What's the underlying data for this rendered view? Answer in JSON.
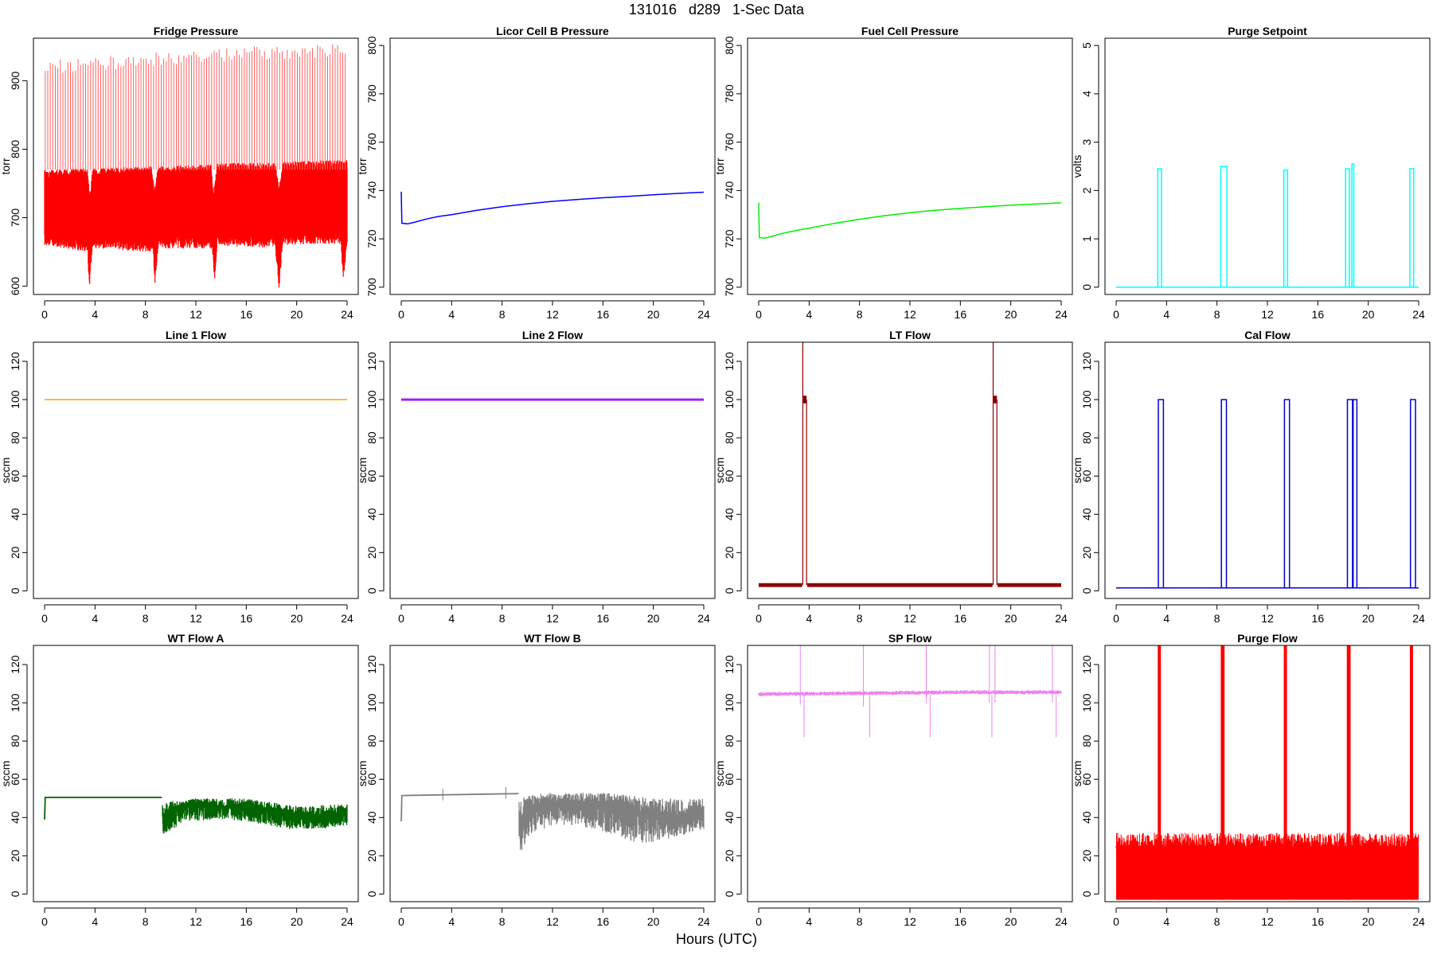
{
  "figure": {
    "title": "131016   d289   1-Sec Data",
    "xlabel": "Hours (UTC)"
  },
  "chart_data": [
    {
      "type": "line",
      "title": "Fridge Pressure",
      "ylabel": "torr",
      "color": "#ff0000",
      "xlim": [
        0,
        24
      ],
      "ylim": [
        588,
        962
      ],
      "xticks": [
        0,
        4,
        8,
        12,
        16,
        20,
        24
      ],
      "yticks": [
        600,
        700,
        800,
        900
      ],
      "base": [
        [
          0,
          715
        ],
        [
          3.3,
          718
        ],
        [
          3.5,
          700
        ],
        [
          3.7,
          712
        ],
        [
          4,
          718
        ],
        [
          8,
          720
        ],
        [
          8.6,
          710
        ],
        [
          8.9,
          722
        ],
        [
          12,
          724
        ],
        [
          13,
          720
        ],
        [
          13.4,
          708
        ],
        [
          13.7,
          722
        ],
        [
          16,
          726
        ],
        [
          18,
          724
        ],
        [
          18.5,
          712
        ],
        [
          18.8,
          724
        ],
        [
          22,
          728
        ],
        [
          24,
          730
        ]
      ],
      "band_hi": [
        [
          0,
          770
        ],
        [
          3.4,
          772
        ],
        [
          3.6,
          730
        ],
        [
          3.8,
          772
        ],
        [
          8.5,
          775
        ],
        [
          8.7,
          740
        ],
        [
          9,
          775
        ],
        [
          13.2,
          778
        ],
        [
          13.4,
          735
        ],
        [
          13.7,
          780
        ],
        [
          18.3,
          780
        ],
        [
          18.6,
          745
        ],
        [
          18.9,
          782
        ],
        [
          24,
          785
        ]
      ],
      "band_lo": [
        [
          0,
          660
        ],
        [
          3.4,
          650
        ],
        [
          3.55,
          595
        ],
        [
          3.8,
          655
        ],
        [
          8.6,
          650
        ],
        [
          8.75,
          600
        ],
        [
          9,
          655
        ],
        [
          13.3,
          655
        ],
        [
          13.5,
          605
        ],
        [
          13.7,
          660
        ],
        [
          18.3,
          655
        ],
        [
          18.6,
          595
        ],
        [
          18.9,
          660
        ],
        [
          23.5,
          662
        ],
        [
          23.7,
          605
        ],
        [
          24,
          660
        ]
      ],
      "spike_range": [
        [
          0,
          930
        ],
        [
          4,
          935
        ],
        [
          8,
          940
        ],
        [
          12,
          945
        ],
        [
          16,
          950
        ],
        [
          20,
          952
        ],
        [
          24,
          955
        ]
      ]
    },
    {
      "type": "line",
      "title": "Licor Cell B Pressure",
      "ylabel": "torr",
      "color": "#0000ff",
      "xlim": [
        0,
        24
      ],
      "ylim": [
        697,
        803
      ],
      "xticks": [
        0,
        4,
        8,
        12,
        16,
        20,
        24
      ],
      "yticks": [
        700,
        720,
        740,
        760,
        780,
        800
      ],
      "points": [
        [
          0,
          739.5
        ],
        [
          0.05,
          726.5
        ],
        [
          0.5,
          726.2
        ],
        [
          1,
          726.8
        ],
        [
          2,
          728.2
        ],
        [
          3,
          729.3
        ],
        [
          4,
          730.0
        ],
        [
          6,
          731.8
        ],
        [
          8,
          733.3
        ],
        [
          10,
          734.5
        ],
        [
          12,
          735.5
        ],
        [
          14,
          736.3
        ],
        [
          16,
          737.0
        ],
        [
          18,
          737.6
        ],
        [
          20,
          738.2
        ],
        [
          22,
          738.8
        ],
        [
          24,
          739.3
        ]
      ]
    },
    {
      "type": "line",
      "title": "Fuel Cell Pressure",
      "ylabel": "torr",
      "color": "#00ee00",
      "xlim": [
        0,
        24
      ],
      "ylim": [
        697,
        803
      ],
      "xticks": [
        0,
        4,
        8,
        12,
        16,
        20,
        24
      ],
      "yticks": [
        700,
        720,
        740,
        760,
        780,
        800
      ],
      "points": [
        [
          0,
          735.0
        ],
        [
          0.05,
          720.5
        ],
        [
          0.5,
          720.3
        ],
        [
          1,
          721.0
        ],
        [
          2,
          722.4
        ],
        [
          3,
          723.5
        ],
        [
          4,
          724.4
        ],
        [
          6,
          726.4
        ],
        [
          8,
          728.1
        ],
        [
          10,
          729.6
        ],
        [
          12,
          730.8
        ],
        [
          14,
          731.8
        ],
        [
          16,
          732.6
        ],
        [
          18,
          733.3
        ],
        [
          20,
          733.9
        ],
        [
          22,
          734.4
        ],
        [
          24,
          734.9
        ]
      ]
    },
    {
      "type": "line",
      "title": "Purge Setpoint",
      "ylabel": "volts",
      "color": "#00ffff",
      "xlim": [
        0,
        24
      ],
      "ylim": [
        -0.15,
        5.15
      ],
      "xticks": [
        0,
        4,
        8,
        12,
        16,
        20,
        24
      ],
      "yticks": [
        0,
        1,
        2,
        3,
        4,
        5
      ],
      "baseline": 0,
      "pulses": [
        [
          3.3,
          3.6,
          2.45
        ],
        [
          8.3,
          8.8,
          2.5
        ],
        [
          13.3,
          13.6,
          2.42
        ],
        [
          18.2,
          18.5,
          2.45
        ],
        [
          18.7,
          18.85,
          2.55
        ],
        [
          23.3,
          23.6,
          2.45
        ]
      ]
    },
    {
      "type": "line",
      "title": "Line 1 Flow",
      "ylabel": "sccm",
      "color": "#ffa500",
      "xlim": [
        0,
        24
      ],
      "ylim": [
        -4,
        130
      ],
      "xticks": [
        0,
        4,
        8,
        12,
        16,
        20,
        24
      ],
      "yticks": [
        0,
        20,
        40,
        60,
        80,
        100,
        120
      ],
      "points": [
        [
          0,
          100
        ],
        [
          24,
          100
        ]
      ]
    },
    {
      "type": "line",
      "title": "Line 2 Flow",
      "ylabel": "sccm",
      "color": "#a020f0",
      "xlim": [
        0,
        24
      ],
      "ylim": [
        -4,
        130
      ],
      "xticks": [
        0,
        4,
        8,
        12,
        16,
        20,
        24
      ],
      "yticks": [
        0,
        20,
        40,
        60,
        80,
        100,
        120
      ],
      "points": [
        [
          0,
          100
        ],
        [
          24,
          100
        ]
      ]
    },
    {
      "type": "line",
      "title": "LT Flow",
      "ylabel": "sccm",
      "color": "#8b0000",
      "xlim": [
        0,
        24
      ],
      "ylim": [
        -4,
        130
      ],
      "xticks": [
        0,
        4,
        8,
        12,
        16,
        20,
        24
      ],
      "yticks": [
        0,
        20,
        40,
        60,
        80,
        100,
        120
      ],
      "band": [
        2,
        4
      ],
      "pulses": [
        [
          3.5,
          3.8,
          100
        ],
        [
          18.6,
          18.9,
          100
        ]
      ]
    },
    {
      "type": "line",
      "title": "Cal Flow",
      "ylabel": "sccm",
      "color": "#0000cd",
      "xlim": [
        0,
        24
      ],
      "ylim": [
        -4,
        130
      ],
      "xticks": [
        0,
        4,
        8,
        12,
        16,
        20,
        24
      ],
      "yticks": [
        0,
        20,
        40,
        60,
        80,
        100,
        120
      ],
      "baseline": 1.5,
      "pulses": [
        [
          3.35,
          3.75,
          100
        ],
        [
          8.35,
          8.75,
          100
        ],
        [
          13.35,
          13.75,
          100
        ],
        [
          18.35,
          18.75,
          100
        ],
        [
          18.8,
          19.1,
          100
        ],
        [
          23.35,
          23.75,
          100
        ]
      ]
    },
    {
      "type": "line",
      "title": "WT Flow A",
      "ylabel": "sccm",
      "color": "#006400",
      "xlim": [
        0,
        24
      ],
      "ylim": [
        -4,
        130
      ],
      "xticks": [
        0,
        4,
        8,
        12,
        16,
        20,
        24
      ],
      "yticks": [
        0,
        20,
        40,
        60,
        80,
        100,
        120
      ],
      "points": [
        [
          0,
          39
        ],
        [
          0.05,
          50.5
        ],
        [
          9.3,
          50.5
        ],
        [
          9.4,
          33
        ],
        [
          10,
          44
        ],
        [
          12,
          47
        ],
        [
          14,
          45
        ],
        [
          16,
          46
        ],
        [
          18,
          44
        ],
        [
          20,
          40
        ],
        [
          22,
          38
        ],
        [
          24,
          42
        ]
      ],
      "noise_hi": [
        [
          9.4,
          48
        ],
        [
          12,
          50
        ],
        [
          16,
          50
        ],
        [
          18,
          48
        ],
        [
          20,
          46
        ],
        [
          24,
          47
        ]
      ],
      "noise_lo": [
        [
          9.4,
          29
        ],
        [
          11,
          38
        ],
        [
          14,
          39
        ],
        [
          16,
          38
        ],
        [
          19,
          34
        ],
        [
          22,
          34
        ],
        [
          24,
          36
        ]
      ]
    },
    {
      "type": "line",
      "title": "WT Flow B",
      "ylabel": "sccm",
      "color": "#808080",
      "xlim": [
        0,
        24
      ],
      "ylim": [
        -4,
        130
      ],
      "xticks": [
        0,
        4,
        8,
        12,
        16,
        20,
        24
      ],
      "yticks": [
        0,
        20,
        40,
        60,
        80,
        100,
        120
      ],
      "points": [
        [
          0,
          38
        ],
        [
          0.05,
          51.5
        ],
        [
          9.3,
          52.5
        ],
        [
          9.4,
          35
        ],
        [
          10,
          45
        ],
        [
          12,
          48
        ],
        [
          14,
          46
        ],
        [
          16,
          47
        ],
        [
          18,
          44
        ],
        [
          20,
          40
        ],
        [
          22,
          38
        ],
        [
          24,
          44
        ]
      ],
      "noise_hi": [
        [
          9.4,
          51
        ],
        [
          12,
          53
        ],
        [
          16,
          53
        ],
        [
          18,
          52
        ],
        [
          20,
          50
        ],
        [
          24,
          50
        ]
      ],
      "noise_lo": [
        [
          9.3,
          17
        ],
        [
          10,
          30
        ],
        [
          12,
          36
        ],
        [
          14,
          36
        ],
        [
          17,
          30
        ],
        [
          19,
          26
        ],
        [
          22,
          30
        ],
        [
          24,
          34
        ]
      ]
    },
    {
      "type": "line",
      "title": "SP Flow",
      "ylabel": "sccm",
      "color": "#ee82ee",
      "xlim": [
        0,
        24
      ],
      "ylim": [
        -4,
        130
      ],
      "xticks": [
        0,
        4,
        8,
        12,
        16,
        20,
        24
      ],
      "yticks": [
        0,
        20,
        40,
        60,
        80,
        100,
        120
      ],
      "points": [
        [
          0,
          104.5
        ],
        [
          8,
          105
        ],
        [
          16,
          105.5
        ],
        [
          24,
          105.5
        ]
      ],
      "spikes": [
        [
          3.3,
          130,
          99
        ],
        [
          3.6,
          82,
          104
        ],
        [
          8.3,
          130,
          98
        ],
        [
          8.8,
          82,
          104
        ],
        [
          13.3,
          130,
          100
        ],
        [
          13.6,
          82,
          104
        ],
        [
          18.3,
          130,
          100
        ],
        [
          18.5,
          82,
          104
        ],
        [
          18.75,
          130,
          100
        ],
        [
          23.3,
          130,
          100
        ],
        [
          23.6,
          82,
          104
        ]
      ]
    },
    {
      "type": "line",
      "title": "Purge Flow",
      "ylabel": "sccm",
      "color": "#ff0000",
      "xlim": [
        0,
        24
      ],
      "ylim": [
        -4,
        130
      ],
      "xticks": [
        0,
        4,
        8,
        12,
        16,
        20,
        24
      ],
      "yticks": [
        0,
        20,
        40,
        60,
        80,
        100,
        120
      ],
      "band": [
        -3,
        27
      ],
      "noise_top": 32,
      "pulses": [
        [
          3.3,
          3.55,
          130
        ],
        [
          8.3,
          8.6,
          130
        ],
        [
          13.3,
          13.55,
          130
        ],
        [
          18.3,
          18.6,
          130
        ],
        [
          23.3,
          23.55,
          130
        ]
      ]
    }
  ]
}
